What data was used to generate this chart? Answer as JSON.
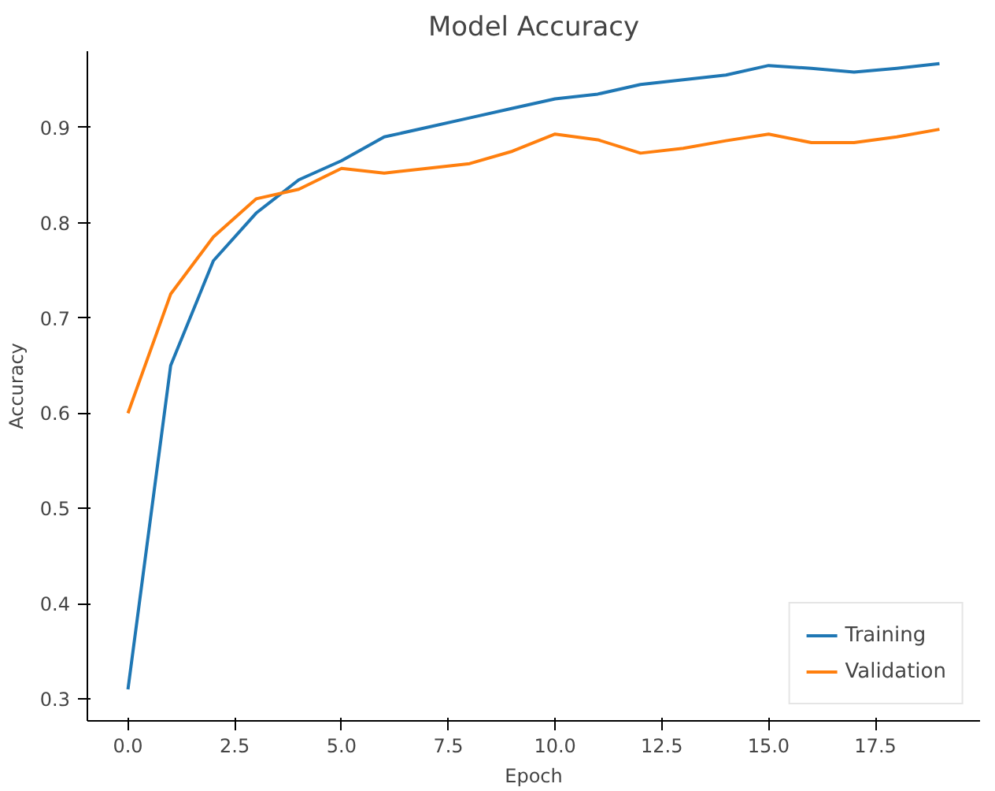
{
  "chart_data": {
    "type": "line",
    "title": "Model Accuracy",
    "xlabel": "Epoch",
    "ylabel": "Accuracy",
    "x": [
      0,
      1,
      2,
      3,
      4,
      5,
      6,
      7,
      8,
      9,
      10,
      11,
      12,
      13,
      14,
      15,
      16,
      17,
      18,
      19
    ],
    "series": [
      {
        "name": "Training",
        "color": "#1f77b4",
        "values": [
          0.31,
          0.65,
          0.76,
          0.81,
          0.845,
          0.865,
          0.89,
          0.9,
          0.91,
          0.92,
          0.93,
          0.935,
          0.945,
          0.95,
          0.955,
          0.965,
          0.962,
          0.958,
          0.962,
          0.967
        ]
      },
      {
        "name": "Validation",
        "color": "#ff7f0e",
        "values": [
          0.6,
          0.725,
          0.785,
          0.825,
          0.835,
          0.857,
          0.852,
          0.857,
          0.862,
          0.875,
          0.893,
          0.887,
          0.873,
          0.878,
          0.886,
          0.893,
          0.884,
          0.884,
          0.89,
          0.898
        ]
      }
    ],
    "xlim": [
      -0.95,
      19.95
    ],
    "ylim": [
      0.277,
      0.98
    ],
    "xticks": [
      {
        "value": 0,
        "label": "0.0"
      },
      {
        "value": 2.5,
        "label": "2.5"
      },
      {
        "value": 5,
        "label": "5.0"
      },
      {
        "value": 7.5,
        "label": "7.5"
      },
      {
        "value": 10,
        "label": "10.0"
      },
      {
        "value": 12.5,
        "label": "12.5"
      },
      {
        "value": 15,
        "label": "15.0"
      },
      {
        "value": 17.5,
        "label": "17.5"
      }
    ],
    "yticks": [
      0.3,
      0.4,
      0.5,
      0.6,
      0.7,
      0.8,
      0.9
    ],
    "grid": false,
    "legend": "bottom right",
    "line_style": "solid"
  }
}
